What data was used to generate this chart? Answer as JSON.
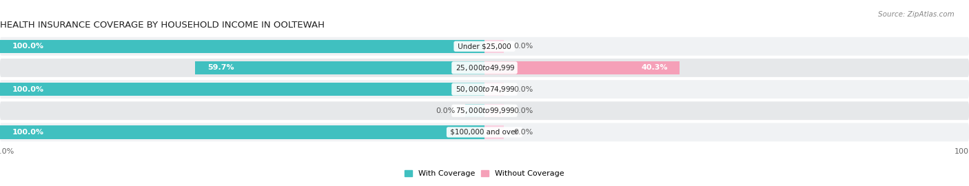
{
  "title": "HEALTH INSURANCE COVERAGE BY HOUSEHOLD INCOME IN OOLTEWAH",
  "source": "Source: ZipAtlas.com",
  "categories": [
    "Under $25,000",
    "$25,000 to $49,999",
    "$50,000 to $74,999",
    "$75,000 to $99,999",
    "$100,000 and over"
  ],
  "with_coverage": [
    100.0,
    59.7,
    100.0,
    0.0,
    100.0
  ],
  "without_coverage": [
    0.0,
    40.3,
    0.0,
    0.0,
    0.0
  ],
  "color_with": "#40c0c0",
  "color_with_light": "#90d8d8",
  "color_without": "#f5a0b8",
  "color_without_pale": "#f9d0e0",
  "row_colors": [
    "#f0f2f4",
    "#e6e8ea",
    "#f0f2f4",
    "#e6e8ea",
    "#f0f2f4"
  ],
  "bar_height": 0.62,
  "title_fontsize": 9.5,
  "label_fontsize": 8,
  "source_fontsize": 7.5,
  "legend_fontsize": 8,
  "value_fontsize": 8,
  "cat_fontsize": 7.5
}
